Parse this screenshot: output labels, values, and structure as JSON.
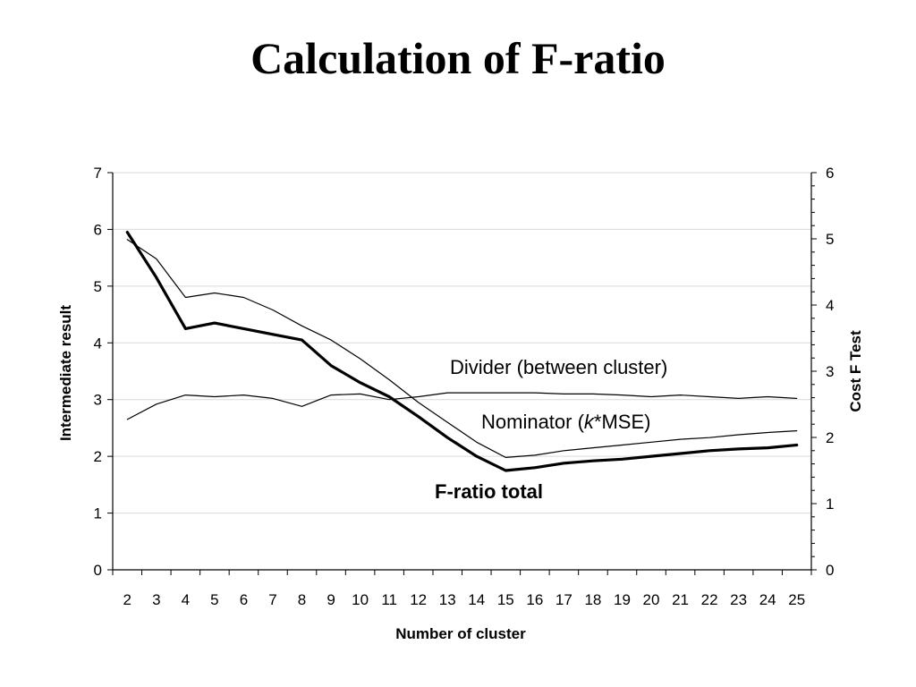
{
  "title": "Calculation of F-ratio",
  "chart_data": {
    "type": "line",
    "title": "Calculation of F-ratio",
    "xlabel": "Number of cluster",
    "ylabel": "Intermediate result",
    "y2label": "Cost F Test",
    "categories": [
      "2",
      "3",
      "4",
      "5",
      "6",
      "7",
      "8",
      "9",
      "10",
      "11",
      "12",
      "13",
      "14",
      "15",
      "16",
      "17",
      "18",
      "19",
      "20",
      "21",
      "22",
      "23",
      "24",
      "25"
    ],
    "ylim": [
      0,
      7
    ],
    "y2lim": [
      0,
      6
    ],
    "yticks": [
      "0",
      "1",
      "2",
      "3",
      "4",
      "5",
      "6",
      "7"
    ],
    "y2ticks": [
      "0",
      "1",
      "2",
      "3",
      "4",
      "5",
      "6"
    ],
    "grid": true,
    "series": [
      {
        "name": "Divider (between cluster)",
        "axis": "left",
        "style": "thin",
        "values": [
          2.65,
          2.92,
          3.08,
          3.05,
          3.08,
          3.02,
          2.88,
          3.08,
          3.1,
          3.0,
          3.05,
          3.12,
          3.12,
          3.12,
          3.12,
          3.1,
          3.1,
          3.08,
          3.05,
          3.08,
          3.05,
          3.02,
          3.05,
          3.02
        ]
      },
      {
        "name": "Nominator (k*MSE)",
        "axis": "left",
        "style": "thin",
        "values": [
          5.82,
          5.48,
          4.8,
          4.88,
          4.8,
          4.58,
          4.3,
          4.05,
          3.72,
          3.35,
          2.95,
          2.6,
          2.25,
          1.98,
          2.02,
          2.1,
          2.15,
          2.2,
          2.25,
          2.3,
          2.33,
          2.38,
          2.42,
          2.45
        ]
      },
      {
        "name": "F-ratio total",
        "axis": "left",
        "style": "thick",
        "values": [
          5.95,
          5.15,
          4.25,
          4.35,
          4.25,
          4.15,
          4.05,
          3.6,
          3.3,
          3.05,
          2.7,
          2.33,
          2.0,
          1.75,
          1.8,
          1.88,
          1.92,
          1.95,
          2.0,
          2.05,
          2.1,
          2.13,
          2.15,
          2.2
        ]
      }
    ],
    "annotations": {
      "divider": "Divider (between cluster)",
      "nominator_prefix": "Nominator (",
      "nominator_k": "k",
      "nominator_suffix": "*MSE)",
      "fratio": "F-ratio total"
    }
  }
}
